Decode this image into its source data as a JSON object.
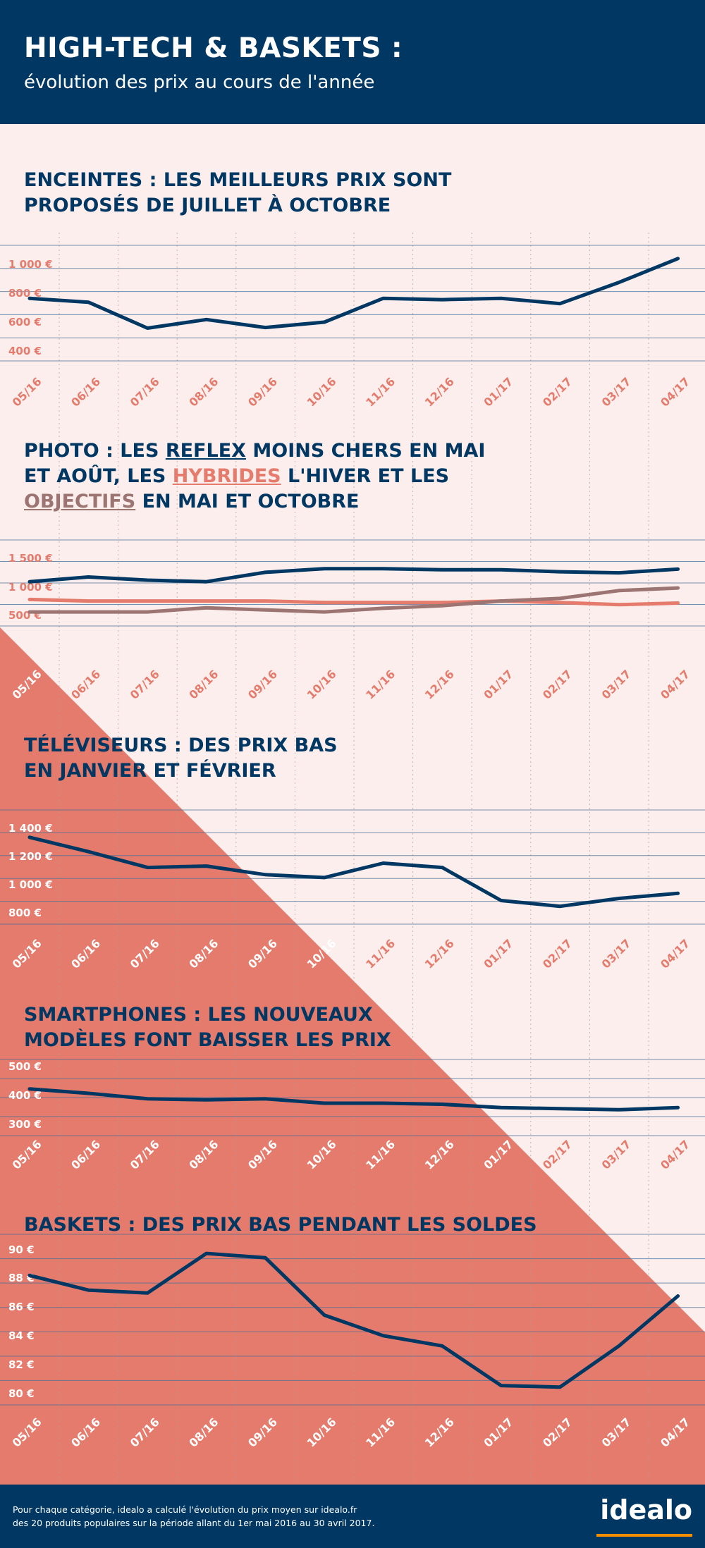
{
  "header": {
    "title": "HIGH-TECH & BASKETS :",
    "subtitle": "évolution des prix au cours de l'année"
  },
  "colors": {
    "navy": "#003763",
    "salmon": "#e47b6c",
    "pink_bg": "#fbeeec",
    "mauve": "#9c7471",
    "idealo_orange": "#f28e00"
  },
  "sections": {
    "enceintes": {
      "line1": "ENCEINTES : LES MEILLEURS PRIX SONT",
      "line2": "PROPOSÉS DE JUILLET À OCTOBRE"
    },
    "photo": {
      "l1_pre": "PHOTO : LES ",
      "l1_reflex": "REFLEX",
      "l1_post": " MOINS CHERS EN MAI",
      "l2_pre": "ET AOÛT, LES ",
      "l2_hybrides": "HYBRIDES",
      "l2_post": " L'HIVER ET LES",
      "l3_objectifs": "OBJECTIFS",
      "l3_post": " EN MAI ET OCTOBRE"
    },
    "televiseurs": {
      "line1": "TÉLÉVISEURS : DES PRIX BAS",
      "line2": "EN JANVIER ET FÉVRIER"
    },
    "smartphones": {
      "line1": "SMARTPHONES : LES NOUVEAUX",
      "line2": "MODÈLES FONT BAISSER LES PRIX"
    },
    "baskets": {
      "line1": "BASKETS : DES PRIX BAS PENDANT LES SOLDES"
    }
  },
  "chart_data": [
    {
      "type": "line",
      "x": [
        "05/16",
        "06/16",
        "07/16",
        "08/16",
        "09/16",
        "10/16",
        "11/16",
        "12/16",
        "01/17",
        "02/17",
        "03/17",
        "04/17"
      ],
      "yticks": [
        "1 000 €",
        "800 €",
        "600 €",
        "400 €"
      ],
      "ylim": [
        200,
        1200
      ],
      "series": [
        {
          "color": "#003763",
          "values": [
            800,
            770,
            575,
            640,
            580,
            620,
            800,
            790,
            800,
            760,
            920,
            1100
          ]
        }
      ]
    },
    {
      "type": "line",
      "x": [
        "05/16",
        "06/16",
        "07/16",
        "08/16",
        "09/16",
        "10/16",
        "11/16",
        "12/16",
        "01/17",
        "02/17",
        "03/17",
        "04/17"
      ],
      "yticks": [
        "1 500 €",
        "1 000 €",
        "500 €"
      ],
      "ylim": [
        0,
        2000
      ],
      "series": [
        {
          "color": "#003763",
          "values": [
            1200,
            1290,
            1230,
            1200,
            1380,
            1450,
            1450,
            1430,
            1430,
            1390,
            1370,
            1440
          ]
        },
        {
          "color": "#e47b6c",
          "values": [
            860,
            830,
            830,
            830,
            830,
            800,
            800,
            800,
            830,
            800,
            760,
            790
          ]
        },
        {
          "color": "#9c7471",
          "values": [
            620,
            620,
            620,
            700,
            660,
            620,
            690,
            740,
            830,
            880,
            1030,
            1080
          ]
        }
      ]
    },
    {
      "type": "line",
      "x": [
        "05/16",
        "06/16",
        "07/16",
        "08/16",
        "09/16",
        "10/16",
        "11/16",
        "12/16",
        "01/17",
        "02/17",
        "03/17",
        "04/17"
      ],
      "yticks": [
        "1 400 €",
        "1 200 €",
        "1 000 €",
        "800 €"
      ],
      "ylim": [
        600,
        1600
      ],
      "series": [
        {
          "color": "#003763",
          "values": [
            1410,
            1310,
            1200,
            1210,
            1150,
            1130,
            1230,
            1200,
            970,
            930,
            985,
            1020
          ]
        }
      ]
    },
    {
      "type": "line",
      "x": [
        "05/16",
        "06/16",
        "07/16",
        "08/16",
        "09/16",
        "10/16",
        "11/16",
        "12/16",
        "01/17",
        "02/17",
        "03/17",
        "04/17"
      ],
      "yticks": [
        "500 €",
        "400 €",
        "300 €"
      ],
      "ylim": [
        200,
        600
      ],
      "series": [
        {
          "color": "#003763",
          "values": [
            465,
            445,
            420,
            415,
            420,
            400,
            400,
            395,
            380,
            375,
            370,
            380
          ]
        }
      ]
    },
    {
      "type": "line",
      "x": [
        "05/16",
        "06/16",
        "07/16",
        "08/16",
        "09/16",
        "10/16",
        "11/16",
        "12/16",
        "01/17",
        "02/17",
        "03/17",
        "04/17"
      ],
      "yticks": [
        "90 €",
        "88 €",
        "86 €",
        "84 €",
        "82 €",
        "80 €"
      ],
      "ylim": [
        79,
        91
      ],
      "series": [
        {
          "color": "#003763",
          "values": [
            88.2,
            87.2,
            87.0,
            89.7,
            89.4,
            85.5,
            84.1,
            83.4,
            80.7,
            80.6,
            83.4,
            86.8
          ]
        }
      ]
    }
  ],
  "footer": {
    "note_line1": "Pour chaque catégorie, idealo a calculé l'évolution du prix moyen sur idealo.fr",
    "note_line2": "des 20 produits populaires sur la période allant du 1er mai 2016 au 30 avril 2017.",
    "logo": "idealo"
  }
}
